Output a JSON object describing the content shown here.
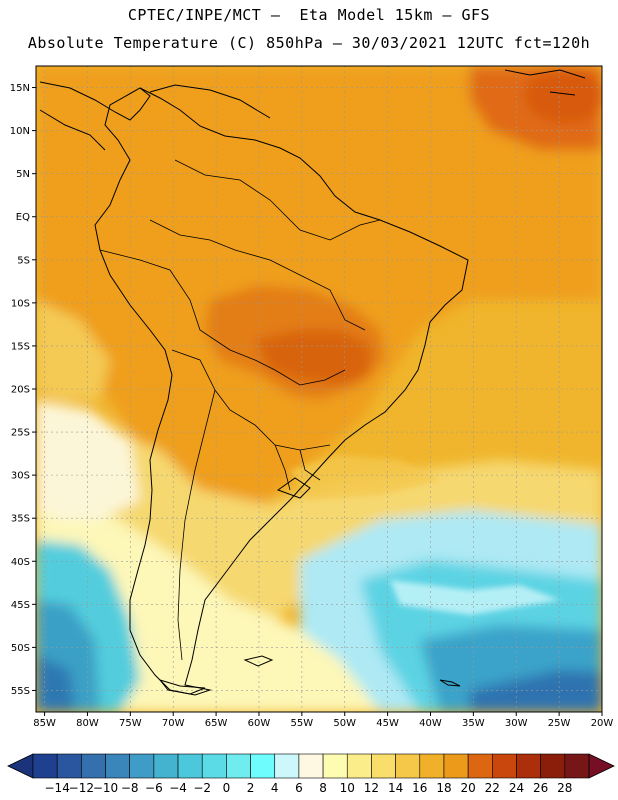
{
  "header": {
    "line1": "CPTEC/INPE/MCT –  Eta Model 15km – GFS",
    "line2": "Absolute Temperature (C) 850hPa – 30/03/2021 12UTC fct=120h"
  },
  "axes": {
    "lat_labels": [
      "15N",
      "10N",
      "5N",
      "EQ",
      "5S",
      "10S",
      "15S",
      "20S",
      "25S",
      "30S",
      "35S",
      "40S",
      "45S",
      "50S",
      "55S"
    ],
    "lon_labels": [
      "85W",
      "80W",
      "75W",
      "70W",
      "65W",
      "60W",
      "55W",
      "50W",
      "45W",
      "40W",
      "35W",
      "30W",
      "25W",
      "20W"
    ],
    "lat_range": [
      17.5,
      -57.5
    ],
    "lon_range": [
      -86,
      -20
    ]
  },
  "colorbar": {
    "labels": [
      "-14",
      "-12",
      "-10",
      "-8",
      "-6",
      "-4",
      "-2",
      "0",
      "2",
      "4",
      "6",
      "8",
      "10",
      "12",
      "14",
      "16",
      "18",
      "20",
      "22",
      "24",
      "26",
      "28"
    ],
    "colors": [
      "#1f3f8f",
      "#2a56a0",
      "#3370ad",
      "#3a86bb",
      "#3f9cc6",
      "#44b3d0",
      "#4cc8dc",
      "#5adbe6",
      "#70ecef",
      "#6ffcfc",
      "#ccf7fb",
      "#fef8e3",
      "#fdfcb0",
      "#fbee8a",
      "#f9de6b",
      "#f6c84a",
      "#f1b02a",
      "#eb9a1a",
      "#dd6612",
      "#c9470c",
      "#aa2f0a",
      "#8b1e0b",
      "#761616"
    ],
    "under_color": "#1a337a",
    "over_color": "#760f26"
  },
  "map": {
    "background_color": "#f0b52c",
    "coast_color": "#000000"
  }
}
